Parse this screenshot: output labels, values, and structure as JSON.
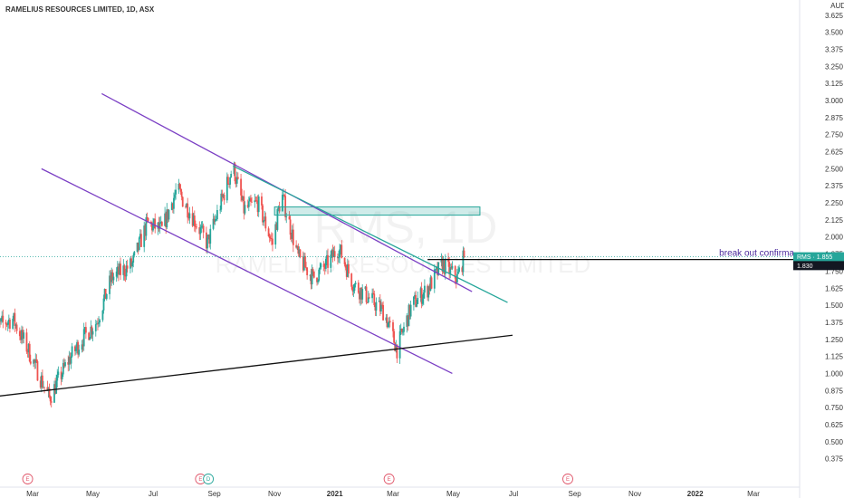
{
  "chart_data": {
    "type": "candlestick",
    "title": "RAMELIUS RESOURCES LIMITED, 1D, ASX",
    "currency": "AUD",
    "watermark": {
      "symbol": "RMS, 1D",
      "name": "RAMELIUS RESOURCES LIMITED"
    },
    "ylim": [
      0.3,
      3.65
    ],
    "y_ticks": [
      "3.625",
      "3.500",
      "3.375",
      "3.250",
      "3.125",
      "3.000",
      "2.875",
      "2.750",
      "2.625",
      "2.500",
      "2.375",
      "2.250",
      "2.125",
      "2.000",
      "1.875",
      "1.750",
      "1.625",
      "1.500",
      "1.375",
      "1.250",
      "1.125",
      "1.000",
      "0.875",
      "0.750",
      "0.625",
      "0.500",
      "0.375"
    ],
    "x_ticks": [
      {
        "label": "Mar",
        "date": "2020-03-01",
        "bold": false
      },
      {
        "label": "May",
        "date": "2020-05-01",
        "bold": false
      },
      {
        "label": "Jul",
        "date": "2020-07-01",
        "bold": false
      },
      {
        "label": "Sep",
        "date": "2020-09-01",
        "bold": false
      },
      {
        "label": "Nov",
        "date": "2020-11-01",
        "bold": false
      },
      {
        "label": "2021",
        "date": "2021-01-01",
        "bold": true
      },
      {
        "label": "Mar",
        "date": "2021-03-01",
        "bold": false
      },
      {
        "label": "May",
        "date": "2021-05-01",
        "bold": false
      },
      {
        "label": "Jul",
        "date": "2021-07-01",
        "bold": false
      },
      {
        "label": "Sep",
        "date": "2021-09-01",
        "bold": false
      },
      {
        "label": "Nov",
        "date": "2021-11-01",
        "bold": false
      },
      {
        "label": "2022",
        "date": "2022-01-01",
        "bold": true
      },
      {
        "label": "Mar",
        "date": "2022-03-01",
        "bold": false
      }
    ],
    "price_path": [
      {
        "date": "2020-01-20",
        "price": 1.33
      },
      {
        "date": "2020-02-10",
        "price": 1.4
      },
      {
        "date": "2020-02-25",
        "price": 1.18
      },
      {
        "date": "2020-03-18",
        "price": 0.82
      },
      {
        "date": "2020-04-05",
        "price": 1.08
      },
      {
        "date": "2020-04-20",
        "price": 1.25
      },
      {
        "date": "2020-05-05",
        "price": 1.38
      },
      {
        "date": "2020-05-20",
        "price": 1.7
      },
      {
        "date": "2020-06-10",
        "price": 1.8
      },
      {
        "date": "2020-06-25",
        "price": 2.1
      },
      {
        "date": "2020-07-10",
        "price": 2.05
      },
      {
        "date": "2020-07-25",
        "price": 2.35
      },
      {
        "date": "2020-08-10",
        "price": 2.15
      },
      {
        "date": "2020-08-25",
        "price": 1.95
      },
      {
        "date": "2020-09-10",
        "price": 2.3
      },
      {
        "date": "2020-09-20",
        "price": 2.52
      },
      {
        "date": "2020-10-01",
        "price": 2.2
      },
      {
        "date": "2020-10-15",
        "price": 2.25
      },
      {
        "date": "2020-10-30",
        "price": 1.95
      },
      {
        "date": "2020-11-08",
        "price": 2.32
      },
      {
        "date": "2020-11-25",
        "price": 1.85
      },
      {
        "date": "2020-12-10",
        "price": 1.7
      },
      {
        "date": "2020-12-22",
        "price": 1.78
      },
      {
        "date": "2021-01-05",
        "price": 1.92
      },
      {
        "date": "2021-01-20",
        "price": 1.65
      },
      {
        "date": "2021-02-05",
        "price": 1.55
      },
      {
        "date": "2021-02-20",
        "price": 1.45
      },
      {
        "date": "2021-03-05",
        "price": 1.18
      },
      {
        "date": "2021-03-20",
        "price": 1.5
      },
      {
        "date": "2021-04-05",
        "price": 1.62
      },
      {
        "date": "2021-04-20",
        "price": 1.8
      },
      {
        "date": "2021-05-05",
        "price": 1.7
      },
      {
        "date": "2021-05-12",
        "price": 1.855
      }
    ],
    "trendlines": [
      {
        "name": "channel-upper",
        "color": "#7b3fc4",
        "from": {
          "date": "2020-05-10",
          "price": 3.05
        },
        "to": {
          "date": "2021-05-20",
          "price": 1.6
        }
      },
      {
        "name": "channel-lower",
        "color": "#7b3fc4",
        "from": {
          "date": "2020-03-10",
          "price": 2.5
        },
        "to": {
          "date": "2021-04-30",
          "price": 1.0
        }
      },
      {
        "name": "resistance-line",
        "color": "#26a69a",
        "from": {
          "date": "2020-09-20",
          "price": 2.52
        },
        "to": {
          "date": "2021-06-25",
          "price": 1.52
        }
      },
      {
        "name": "support-line",
        "color": "#111111",
        "from": {
          "date": "2020-01-10",
          "price": 0.82
        },
        "to": {
          "date": "2021-06-30",
          "price": 1.28
        }
      }
    ],
    "zone": {
      "from_date": "2020-11-01",
      "to_date": "2021-05-28",
      "top": 2.22,
      "bottom": 2.16,
      "color": "#26a69a"
    },
    "breakout": {
      "label": "break out confirma",
      "from_date": "2021-04-05",
      "level": 1.835
    },
    "last_price": {
      "symbol": "RMS",
      "value": "1.855",
      "price": 1.855,
      "color": "#26a69a"
    },
    "price_marker": {
      "value": "1.830",
      "price": 1.83
    },
    "events": [
      {
        "date": "2020-02-25",
        "type": "E"
      },
      {
        "date": "2020-08-18",
        "type": "E"
      },
      {
        "date": "2020-08-26",
        "type": "D"
      },
      {
        "date": "2021-02-25",
        "type": "E"
      },
      {
        "date": "2021-08-25",
        "type": "E"
      }
    ]
  }
}
